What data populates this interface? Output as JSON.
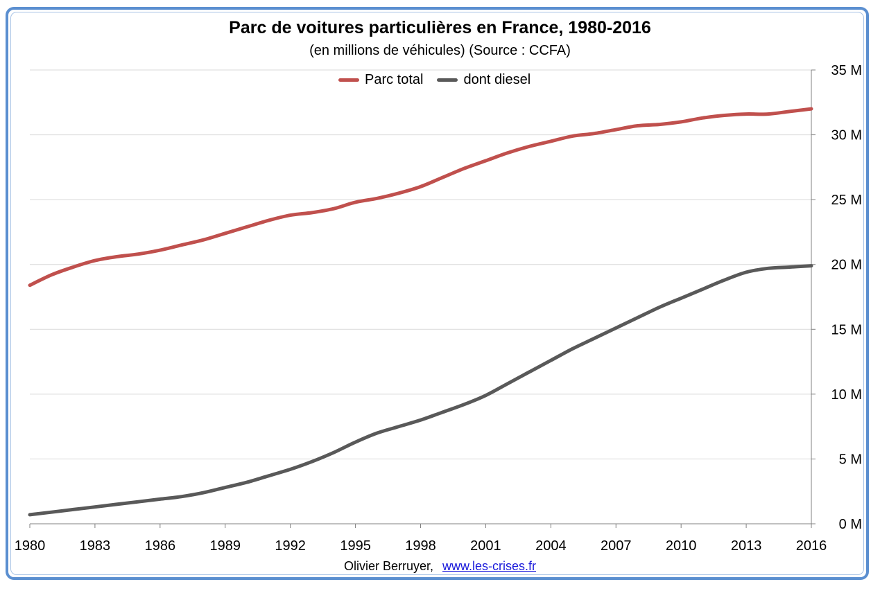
{
  "chart_data": {
    "type": "line",
    "title": "Parc de voitures particulières en France, 1980-2016",
    "subtitle": "(en millions de véhicules) (Source : CCFA)",
    "x": [
      1980,
      1981,
      1982,
      1983,
      1984,
      1985,
      1986,
      1987,
      1988,
      1989,
      1990,
      1991,
      1992,
      1993,
      1994,
      1995,
      1996,
      1997,
      1998,
      1999,
      2000,
      2001,
      2002,
      2003,
      2004,
      2005,
      2006,
      2007,
      2008,
      2009,
      2010,
      2011,
      2012,
      2013,
      2014,
      2015,
      2016
    ],
    "x_tick_labels": [
      "1980",
      "1983",
      "1986",
      "1989",
      "1992",
      "1995",
      "1998",
      "2001",
      "2004",
      "2007",
      "2010",
      "2013",
      "2016"
    ],
    "y_tick_labels": [
      "0 M",
      "5 M",
      "10 M",
      "15 M",
      "20 M",
      "25 M",
      "30 M",
      "35 M"
    ],
    "ylim": [
      0,
      35
    ],
    "xlim": [
      1980,
      2016
    ],
    "grid": true,
    "y_axis_side": "right",
    "legend_position": "top-center",
    "series": [
      {
        "name": "Parc total",
        "color": "#c0504d",
        "values": [
          18.4,
          19.2,
          19.8,
          20.3,
          20.6,
          20.8,
          21.1,
          21.5,
          21.9,
          22.4,
          22.9,
          23.4,
          23.8,
          24.0,
          24.3,
          24.8,
          25.1,
          25.5,
          26.0,
          26.7,
          27.4,
          28.0,
          28.6,
          29.1,
          29.5,
          29.9,
          30.1,
          30.4,
          30.7,
          30.8,
          31.0,
          31.3,
          31.5,
          31.6,
          31.6,
          31.8,
          32.0
        ]
      },
      {
        "name": "dont diesel",
        "color": "#595959",
        "values": [
          0.7,
          0.9,
          1.1,
          1.3,
          1.5,
          1.7,
          1.9,
          2.1,
          2.4,
          2.8,
          3.2,
          3.7,
          4.2,
          4.8,
          5.5,
          6.3,
          7.0,
          7.5,
          8.0,
          8.6,
          9.2,
          9.9,
          10.8,
          11.7,
          12.6,
          13.5,
          14.3,
          15.1,
          15.9,
          16.7,
          17.4,
          18.1,
          18.8,
          19.4,
          19.7,
          19.8,
          19.9
        ]
      }
    ]
  },
  "footer": {
    "author": "Olivier Berruyer,",
    "link": "www.les-crises.fr"
  }
}
